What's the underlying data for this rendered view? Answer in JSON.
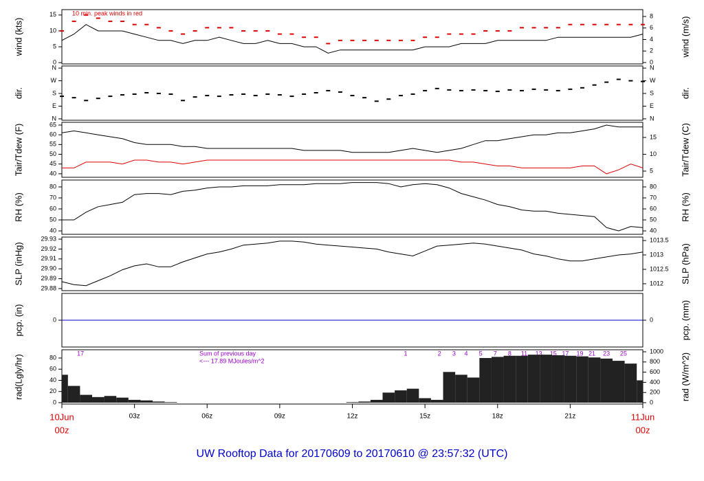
{
  "chart_data": {
    "title": "UW Rooftop Data for 20170609  to  20170610 @ 23:57:32  (UTC)",
    "x_axis": {
      "xlim": [
        0,
        24
      ],
      "xticks": [
        {
          "value": 0,
          "label": "00z"
        },
        {
          "value": 3,
          "label": "03z"
        },
        {
          "value": 6,
          "label": "06z"
        },
        {
          "value": 9,
          "label": "09z"
        },
        {
          "value": 12,
          "label": "12z"
        },
        {
          "value": 15,
          "label": "15z"
        },
        {
          "value": 18,
          "label": "18z"
        },
        {
          "value": 21,
          "label": "21z"
        },
        {
          "value": 24,
          "label": "00z"
        }
      ],
      "date_labels": [
        {
          "value": 0,
          "label": "10Jun"
        },
        {
          "value": 24,
          "label": "11Jun"
        }
      ]
    },
    "panels": [
      {
        "type": "line",
        "ylabel": "wind (kts)",
        "y2label": "wind (m/s)",
        "annotation": "10 min. peak winds in red",
        "ylim": [
          -0.4,
          16.7
        ],
        "yticks": [
          0,
          5,
          10,
          15
        ],
        "y2lim": [
          -0.24,
          9.19
        ],
        "y2ticks": [
          0,
          2,
          4,
          6,
          8
        ],
        "x": [
          0,
          0.5,
          1,
          1.5,
          2,
          2.5,
          3,
          3.5,
          4,
          4.5,
          5,
          5.5,
          6,
          6.5,
          7,
          7.5,
          8,
          8.5,
          9,
          9.5,
          10,
          10.5,
          11,
          11.5,
          12,
          12.5,
          13,
          13.5,
          14,
          14.5,
          15,
          15.5,
          16,
          16.5,
          17,
          17.5,
          18,
          18.5,
          19,
          19.5,
          20,
          20.5,
          21,
          21.5,
          22,
          22.5,
          23,
          23.5,
          24
        ],
        "series": [
          {
            "type": "line",
            "color": "#000000",
            "values": [
              7,
              9,
              12,
              10,
              10,
              10,
              9,
              8,
              7,
              7,
              6,
              7,
              7,
              8,
              7,
              6,
              6,
              7,
              6,
              6,
              5,
              5,
              3,
              4,
              4,
              4,
              4,
              4,
              4,
              4,
              5,
              5,
              5,
              6,
              6,
              6,
              7,
              7,
              7,
              7,
              7,
              8,
              8,
              8,
              8,
              8,
              8,
              8,
              9
            ]
          },
          {
            "type": "dash",
            "color": "#dd0000",
            "values": [
              10,
              13,
              15,
              14,
              13,
              13,
              12,
              12,
              11,
              10,
              9,
              10,
              11,
              11,
              11,
              10,
              10,
              10,
              9,
              9,
              8,
              8,
              6,
              7,
              7,
              7,
              7,
              7,
              7,
              7,
              8,
              8,
              9,
              9,
              9,
              10,
              10,
              10,
              11,
              11,
              11,
              11,
              12,
              12,
              12,
              12,
              12,
              12,
              12
            ]
          }
        ]
      },
      {
        "type": "scatter",
        "ylabel": "dir.",
        "y2label": "dir.",
        "ylim": [
          -10,
          375
        ],
        "yticks": [
          {
            "value": 0,
            "label": "N"
          },
          {
            "value": 90,
            "label": "E"
          },
          {
            "value": 180,
            "label": "S"
          },
          {
            "value": 270,
            "label": "W"
          },
          {
            "value": 360,
            "label": "N"
          }
        ],
        "y2lim": [
          -10,
          375
        ],
        "y2ticks": [
          {
            "value": 0,
            "label": "N"
          },
          {
            "value": 90,
            "label": "E"
          },
          {
            "value": 180,
            "label": "S"
          },
          {
            "value": 270,
            "label": "W"
          },
          {
            "value": 360,
            "label": "N"
          }
        ],
        "x": [
          0,
          0.5,
          1,
          1.5,
          2,
          2.5,
          3,
          3.5,
          4,
          4.5,
          5,
          5.5,
          6,
          6.5,
          7,
          7.5,
          8,
          8.5,
          9,
          9.5,
          10,
          10.5,
          11,
          11.5,
          12,
          12.5,
          13,
          13.5,
          14,
          14.5,
          15,
          15.5,
          16,
          16.5,
          17,
          17.5,
          18,
          18.5,
          19,
          19.5,
          20,
          20.5,
          21,
          21.5,
          22,
          22.5,
          23,
          23.5,
          24
        ],
        "series": [
          {
            "type": "dash",
            "color": "#000000",
            "values": [
              160,
              150,
              130,
              145,
              160,
              170,
              175,
              185,
              180,
              175,
              130,
              155,
              165,
              160,
              170,
              175,
              165,
              175,
              170,
              160,
              175,
              185,
              200,
              190,
              165,
              150,
              125,
              140,
              165,
              175,
              200,
              215,
              205,
              200,
              205,
              200,
              195,
              205,
              200,
              210,
              205,
              200,
              210,
              220,
              240,
              260,
              280,
              270,
              265
            ]
          }
        ]
      },
      {
        "type": "line",
        "ylabel": "Tair/Tdew (F)",
        "y2label": "Tair/Tdew (C)",
        "ylim": [
          38.2,
          66.4
        ],
        "yticks": [
          40,
          45,
          50,
          55,
          60,
          65
        ],
        "y2lim": [
          3.16,
          19.5
        ],
        "y2ticks": [
          5,
          10,
          15
        ],
        "x": [
          0,
          0.5,
          1,
          1.5,
          2,
          2.5,
          3,
          3.5,
          4,
          4.5,
          5,
          5.5,
          6,
          6.5,
          7,
          7.5,
          8,
          8.5,
          9,
          9.5,
          10,
          10.5,
          11,
          11.5,
          12,
          12.5,
          13,
          13.5,
          14,
          14.5,
          15,
          15.5,
          16,
          16.5,
          17,
          17.5,
          18,
          18.5,
          19,
          19.5,
          20,
          20.5,
          21,
          21.5,
          22,
          22.5,
          23,
          23.5,
          24
        ],
        "series": [
          {
            "type": "line",
            "color": "#000000",
            "values": [
              61,
              62,
              61,
              60,
              59,
              58,
              56,
              55,
              55,
              55,
              54,
              54,
              53,
              53,
              53,
              53,
              53,
              53,
              53,
              53,
              52,
              52,
              52,
              52,
              51,
              51,
              51,
              51,
              52,
              53,
              52,
              51,
              52,
              53,
              55,
              57,
              57,
              58,
              59,
              60,
              60,
              61,
              61,
              62,
              63,
              65,
              64,
              64,
              64
            ]
          },
          {
            "type": "line",
            "color": "#dd0000",
            "values": [
              43,
              43,
              46,
              46,
              46,
              45,
              47,
              47,
              46,
              46,
              45,
              46,
              47,
              47,
              47,
              47,
              47,
              47,
              47,
              47,
              47,
              47,
              47,
              47,
              47,
              47,
              47,
              47,
              47,
              47,
              47,
              47,
              47,
              46,
              46,
              45,
              44,
              44,
              43,
              43,
              43,
              43,
              43,
              44,
              44,
              40,
              42,
              45,
              43
            ]
          }
        ]
      },
      {
        "type": "line",
        "ylabel": "RH (%)",
        "y2label": "RH (%)",
        "ylim": [
          36.9,
          86.25
        ],
        "yticks": [
          40,
          50,
          60,
          70,
          80
        ],
        "y2lim": [
          36.9,
          86.25
        ],
        "y2ticks": [
          40,
          50,
          60,
          70,
          80
        ],
        "x": [
          0,
          0.5,
          1,
          1.5,
          2,
          2.5,
          3,
          3.5,
          4,
          4.5,
          5,
          5.5,
          6,
          6.5,
          7,
          7.5,
          8,
          8.5,
          9,
          9.5,
          10,
          10.5,
          11,
          11.5,
          12,
          12.5,
          13,
          13.5,
          14,
          14.5,
          15,
          15.5,
          16,
          16.5,
          17,
          17.5,
          18,
          18.5,
          19,
          19.5,
          20,
          20.5,
          21,
          21.5,
          22,
          22.5,
          23,
          23.5,
          24
        ],
        "series": [
          {
            "type": "line",
            "color": "#000000",
            "values": [
              50,
              50,
              57,
              62,
              64,
              66,
              73,
              74,
              74,
              73,
              76,
              77,
              79,
              80,
              80,
              81,
              81,
              81,
              82,
              82,
              82,
              83,
              83,
              83,
              84,
              84,
              84,
              83,
              80,
              82,
              83,
              82,
              79,
              74,
              71,
              68,
              64,
              62,
              59,
              58,
              58,
              56,
              55,
              54,
              53,
              43,
              40,
              44,
              43
            ]
          }
        ]
      },
      {
        "type": "line",
        "ylabel": "SLP (inHg)",
        "y2label": "SLP (hPa)",
        "ylim": [
          29.8779,
          29.9321
        ],
        "yticks": [
          29.88,
          29.89,
          {
            "value": 29.9,
            "label": "29.90"
          },
          29.91,
          29.92,
          29.93
        ],
        "y2lim": [
          1011.76,
          1013.62
        ],
        "y2ticks": [
          1012,
          1012.5,
          1013,
          1013.5
        ],
        "x": [
          0,
          0.5,
          1,
          1.5,
          2,
          2.5,
          3,
          3.5,
          4,
          4.5,
          5,
          5.5,
          6,
          6.5,
          7,
          7.5,
          8,
          8.5,
          9,
          9.5,
          10,
          10.5,
          11,
          11.5,
          12,
          12.5,
          13,
          13.5,
          14,
          14.5,
          15,
          15.5,
          16,
          16.5,
          17,
          17.5,
          18,
          18.5,
          19,
          19.5,
          20,
          20.5,
          21,
          21.5,
          22,
          22.5,
          23,
          23.5,
          24
        ],
        "series": [
          {
            "type": "line",
            "color": "#000000",
            "values": [
              29.887,
              29.884,
              29.883,
              29.888,
              29.893,
              29.899,
              29.903,
              29.905,
              29.902,
              29.902,
              29.907,
              29.911,
              29.915,
              29.917,
              29.92,
              29.924,
              29.925,
              29.926,
              29.928,
              29.928,
              29.927,
              29.925,
              29.924,
              29.923,
              29.922,
              29.921,
              29.92,
              29.917,
              29.915,
              29.913,
              29.918,
              29.923,
              29.924,
              29.925,
              29.926,
              29.925,
              29.923,
              29.921,
              29.919,
              29.915,
              29.913,
              29.91,
              29.908,
              29.908,
              29.91,
              29.912,
              29.914,
              29.915,
              29.917
            ]
          }
        ]
      },
      {
        "type": "line",
        "ylabel": "pcp. (in)",
        "y2label": "pcp. (mm)",
        "ylim": [
          -1,
          1
        ],
        "yticks": [
          0
        ],
        "y2lim": [
          -1,
          1
        ],
        "y2ticks": [
          0
        ],
        "x": [
          0,
          0.5,
          1,
          1.5,
          2,
          2.5,
          3,
          3.5,
          4,
          4.5,
          5,
          5.5,
          6,
          6.5,
          7,
          7.5,
          8,
          8.5,
          9,
          9.5,
          10,
          10.5,
          11,
          11.5,
          12,
          12.5,
          13,
          13.5,
          14,
          14.5,
          15,
          15.5,
          16,
          16.5,
          17,
          17.5,
          18,
          18.5,
          19,
          19.5,
          20,
          20.5,
          21,
          21.5,
          22,
          22.5,
          23,
          23.5,
          24
        ],
        "series": [
          {
            "type": "line",
            "color": "#0000cc",
            "values": [
              0,
              0,
              0,
              0,
              0,
              0,
              0,
              0,
              0,
              0,
              0,
              0,
              0,
              0,
              0,
              0,
              0,
              0,
              0,
              0,
              0,
              0,
              0,
              0,
              0,
              0,
              0,
              0,
              0,
              0,
              0,
              0,
              0,
              0,
              0,
              0,
              0,
              0,
              0,
              0,
              0,
              0,
              0,
              0,
              0,
              0,
              0,
              0,
              0
            ]
          }
        ]
      },
      {
        "type": "bar",
        "ylabel": "rad(Lgly/hr)",
        "y2label": "rad (W/m^2)",
        "annotations": [
          "Sum of previous day",
          "<--- 17.89 MJoules/m^2"
        ],
        "sun_marks": {
          "x": [
            0.77,
            14.2,
            15.6,
            16.2,
            16.7,
            17.3,
            17.9,
            18.5,
            19.1,
            19.7,
            20.3,
            20.8,
            21.4,
            21.9,
            22.5,
            23.2
          ],
          "labels": [
            17,
            1,
            2,
            3,
            4,
            5,
            7,
            8,
            11,
            13,
            15,
            17,
            19,
            21,
            23,
            25
          ]
        },
        "ylim": [
          -2.5,
          94.8
        ],
        "yticks": [
          0,
          20,
          40,
          60,
          80
        ],
        "y2lim": [
          -27,
          1040
        ],
        "y2ticks": [
          0,
          200,
          400,
          600,
          800,
          1000
        ],
        "x": [
          0,
          0.5,
          1,
          1.5,
          2,
          2.5,
          3,
          3.5,
          4,
          4.5,
          5,
          5.5,
          6,
          6.5,
          7,
          7.5,
          8,
          8.5,
          9,
          9.5,
          10,
          10.5,
          11,
          11.5,
          12,
          12.5,
          13,
          13.5,
          14,
          14.5,
          15,
          15.5,
          16,
          16.5,
          17,
          17.5,
          18,
          18.5,
          19,
          19.5,
          20,
          20.5,
          21,
          21.5,
          22,
          22.5,
          23,
          23.5,
          24
        ],
        "series": [
          {
            "type": "bar",
            "color": "#222222",
            "values": [
              50,
              30,
              14,
              10,
              12,
              9,
              5,
              4,
              2,
              1,
              0,
              0,
              0,
              0,
              0,
              0,
              0,
              0,
              0,
              0,
              0,
              0,
              0,
              0,
              1,
              2,
              5,
              18,
              22,
              25,
              8,
              5,
              55,
              50,
              45,
              80,
              82,
              84,
              84,
              86,
              86,
              85,
              84,
              83,
              81,
              79,
              75,
              70,
              40
            ]
          }
        ]
      }
    ]
  }
}
